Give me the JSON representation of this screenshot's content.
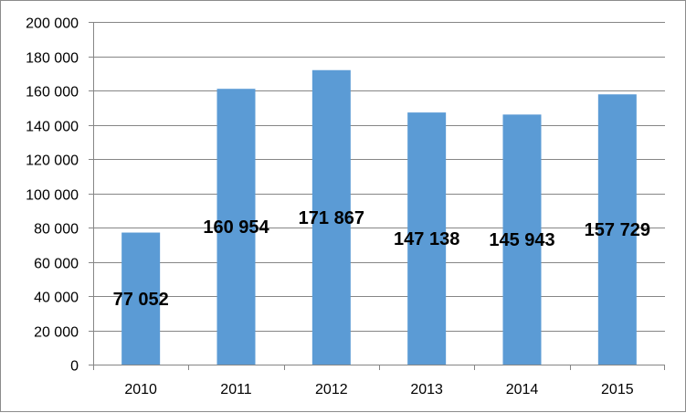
{
  "chart_data": {
    "type": "bar",
    "categories": [
      "2010",
      "2011",
      "2012",
      "2013",
      "2014",
      "2015"
    ],
    "values": [
      77052,
      160954,
      171867,
      147138,
      145943,
      157729
    ],
    "data_labels": [
      "77 052",
      "160 954",
      "171 867",
      "147 138",
      "145 943",
      "157 729"
    ],
    "y_tick_values": [
      0,
      20000,
      40000,
      60000,
      80000,
      100000,
      120000,
      140000,
      160000,
      180000,
      200000
    ],
    "y_tick_labels": [
      "0",
      "20 000",
      "40 000",
      "60 000",
      "80 000",
      "100 000",
      "120 000",
      "140 000",
      "160 000",
      "180 000",
      "200 000"
    ],
    "ylim": [
      0,
      200000
    ],
    "grid": true,
    "legend": "none",
    "colors": {
      "bar": "#5b9bd5",
      "grid": "#868686",
      "border": "#8c8c8c"
    }
  }
}
